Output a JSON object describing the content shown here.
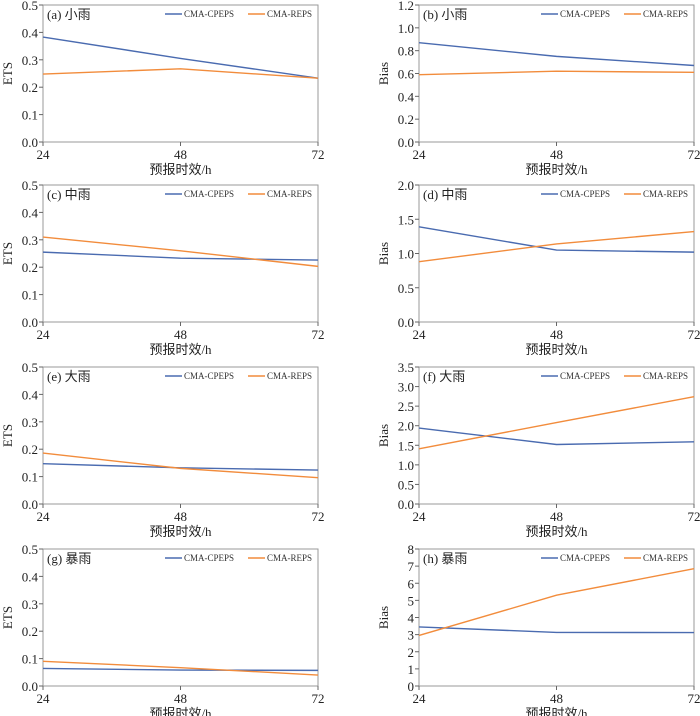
{
  "colors": {
    "CMA-CPEPS": "#4a6bb0",
    "CMA-REPS": "#f28c3c",
    "frame": "#999999"
  },
  "chart_data": [
    {
      "type": "line",
      "title": "(a) 小雨",
      "xlabel": "预报时效/h",
      "ylabel": "ETS",
      "x": [
        24,
        48,
        72
      ],
      "xticks": [
        "24",
        "48",
        "72"
      ],
      "ylim": [
        0,
        0.5
      ],
      "yticks": [
        "0.0",
        "0.1",
        "0.2",
        "0.3",
        "0.4",
        "0.5"
      ],
      "legend": "top-right",
      "series": [
        {
          "name": "CMA-CPEPS",
          "values": [
            0.383,
            0.305,
            0.233
          ]
        },
        {
          "name": "CMA-REPS",
          "values": [
            0.248,
            0.267,
            0.233
          ]
        }
      ]
    },
    {
      "type": "line",
      "title": "(b) 小雨",
      "xlabel": "预报时效/h",
      "ylabel": "Bias",
      "x": [
        24,
        48,
        72
      ],
      "xticks": [
        "24",
        "48",
        "72"
      ],
      "ylim": [
        0,
        1.2
      ],
      "yticks": [
        "0.0",
        "0.2",
        "0.4",
        "0.6",
        "0.8",
        "1.0",
        "1.2"
      ],
      "legend": "top-right",
      "series": [
        {
          "name": "CMA-CPEPS",
          "values": [
            0.87,
            0.75,
            0.67
          ]
        },
        {
          "name": "CMA-REPS",
          "values": [
            0.59,
            0.62,
            0.61
          ]
        }
      ]
    },
    {
      "type": "line",
      "title": "(c) 中雨",
      "xlabel": "预报时效/h",
      "ylabel": "ETS",
      "x": [
        24,
        48,
        72
      ],
      "xticks": [
        "24",
        "48",
        "72"
      ],
      "ylim": [
        0,
        0.5
      ],
      "yticks": [
        "0.0",
        "0.1",
        "0.2",
        "0.3",
        "0.4",
        "0.5"
      ],
      "legend": "top-right",
      "series": [
        {
          "name": "CMA-CPEPS",
          "values": [
            0.255,
            0.233,
            0.226
          ]
        },
        {
          "name": "CMA-REPS",
          "values": [
            0.31,
            0.26,
            0.203
          ]
        }
      ]
    },
    {
      "type": "line",
      "title": "(d) 中雨",
      "xlabel": "预报时效/h",
      "ylabel": "Bias",
      "x": [
        24,
        48,
        72
      ],
      "xticks": [
        "24",
        "48",
        "72"
      ],
      "ylim": [
        0,
        2.0
      ],
      "yticks": [
        "0.0",
        "0.5",
        "1.0",
        "1.5",
        "2.0"
      ],
      "legend": "top-right",
      "series": [
        {
          "name": "CMA-CPEPS",
          "values": [
            1.39,
            1.05,
            1.02
          ]
        },
        {
          "name": "CMA-REPS",
          "values": [
            0.88,
            1.14,
            1.32
          ]
        }
      ]
    },
    {
      "type": "line",
      "title": "(e) 大雨",
      "xlabel": "预报时效/h",
      "ylabel": "ETS",
      "x": [
        24,
        48,
        72
      ],
      "xticks": [
        "24",
        "48",
        "72"
      ],
      "ylim": [
        0,
        0.5
      ],
      "yticks": [
        "0.0",
        "0.1",
        "0.2",
        "0.3",
        "0.4",
        "0.5"
      ],
      "legend": "top-right",
      "series": [
        {
          "name": "CMA-CPEPS",
          "values": [
            0.147,
            0.132,
            0.124
          ]
        },
        {
          "name": "CMA-REPS",
          "values": [
            0.186,
            0.13,
            0.096
          ]
        }
      ]
    },
    {
      "type": "line",
      "title": "(f) 大雨",
      "xlabel": "预报时效/h",
      "ylabel": "Bias",
      "x": [
        24,
        48,
        72
      ],
      "xticks": [
        "24",
        "48",
        "72"
      ],
      "ylim": [
        0,
        3.5
      ],
      "yticks": [
        "0.0",
        "0.5",
        "1.0",
        "1.5",
        "2.0",
        "2.5",
        "3.0",
        "3.5"
      ],
      "legend": "top-right",
      "series": [
        {
          "name": "CMA-CPEPS",
          "values": [
            1.94,
            1.52,
            1.59
          ]
        },
        {
          "name": "CMA-REPS",
          "values": [
            1.41,
            2.08,
            2.74
          ]
        }
      ]
    },
    {
      "type": "line",
      "title": "(g) 暴雨",
      "xlabel": "预报时效/h",
      "ylabel": "ETS",
      "x": [
        24,
        48,
        72
      ],
      "xticks": [
        "24",
        "48",
        "72"
      ],
      "ylim": [
        0,
        0.5
      ],
      "yticks": [
        "0.0",
        "0.1",
        "0.2",
        "0.3",
        "0.4",
        "0.5"
      ],
      "legend": "top-right",
      "series": [
        {
          "name": "CMA-CPEPS",
          "values": [
            0.064,
            0.058,
            0.057
          ]
        },
        {
          "name": "CMA-REPS",
          "values": [
            0.09,
            0.067,
            0.04
          ]
        }
      ]
    },
    {
      "type": "line",
      "title": "(h) 暴雨",
      "xlabel": "预报时效/h",
      "ylabel": "Bias",
      "x": [
        24,
        48,
        72
      ],
      "xticks": [
        "24",
        "48",
        "72"
      ],
      "ylim": [
        0,
        8
      ],
      "yticks": [
        "0",
        "1",
        "2",
        "3",
        "4",
        "5",
        "6",
        "7",
        "8"
      ],
      "legend": "top-right",
      "series": [
        {
          "name": "CMA-CPEPS",
          "values": [
            3.45,
            3.13,
            3.12
          ]
        },
        {
          "name": "CMA-REPS",
          "values": [
            2.95,
            5.3,
            6.85
          ]
        }
      ]
    }
  ]
}
